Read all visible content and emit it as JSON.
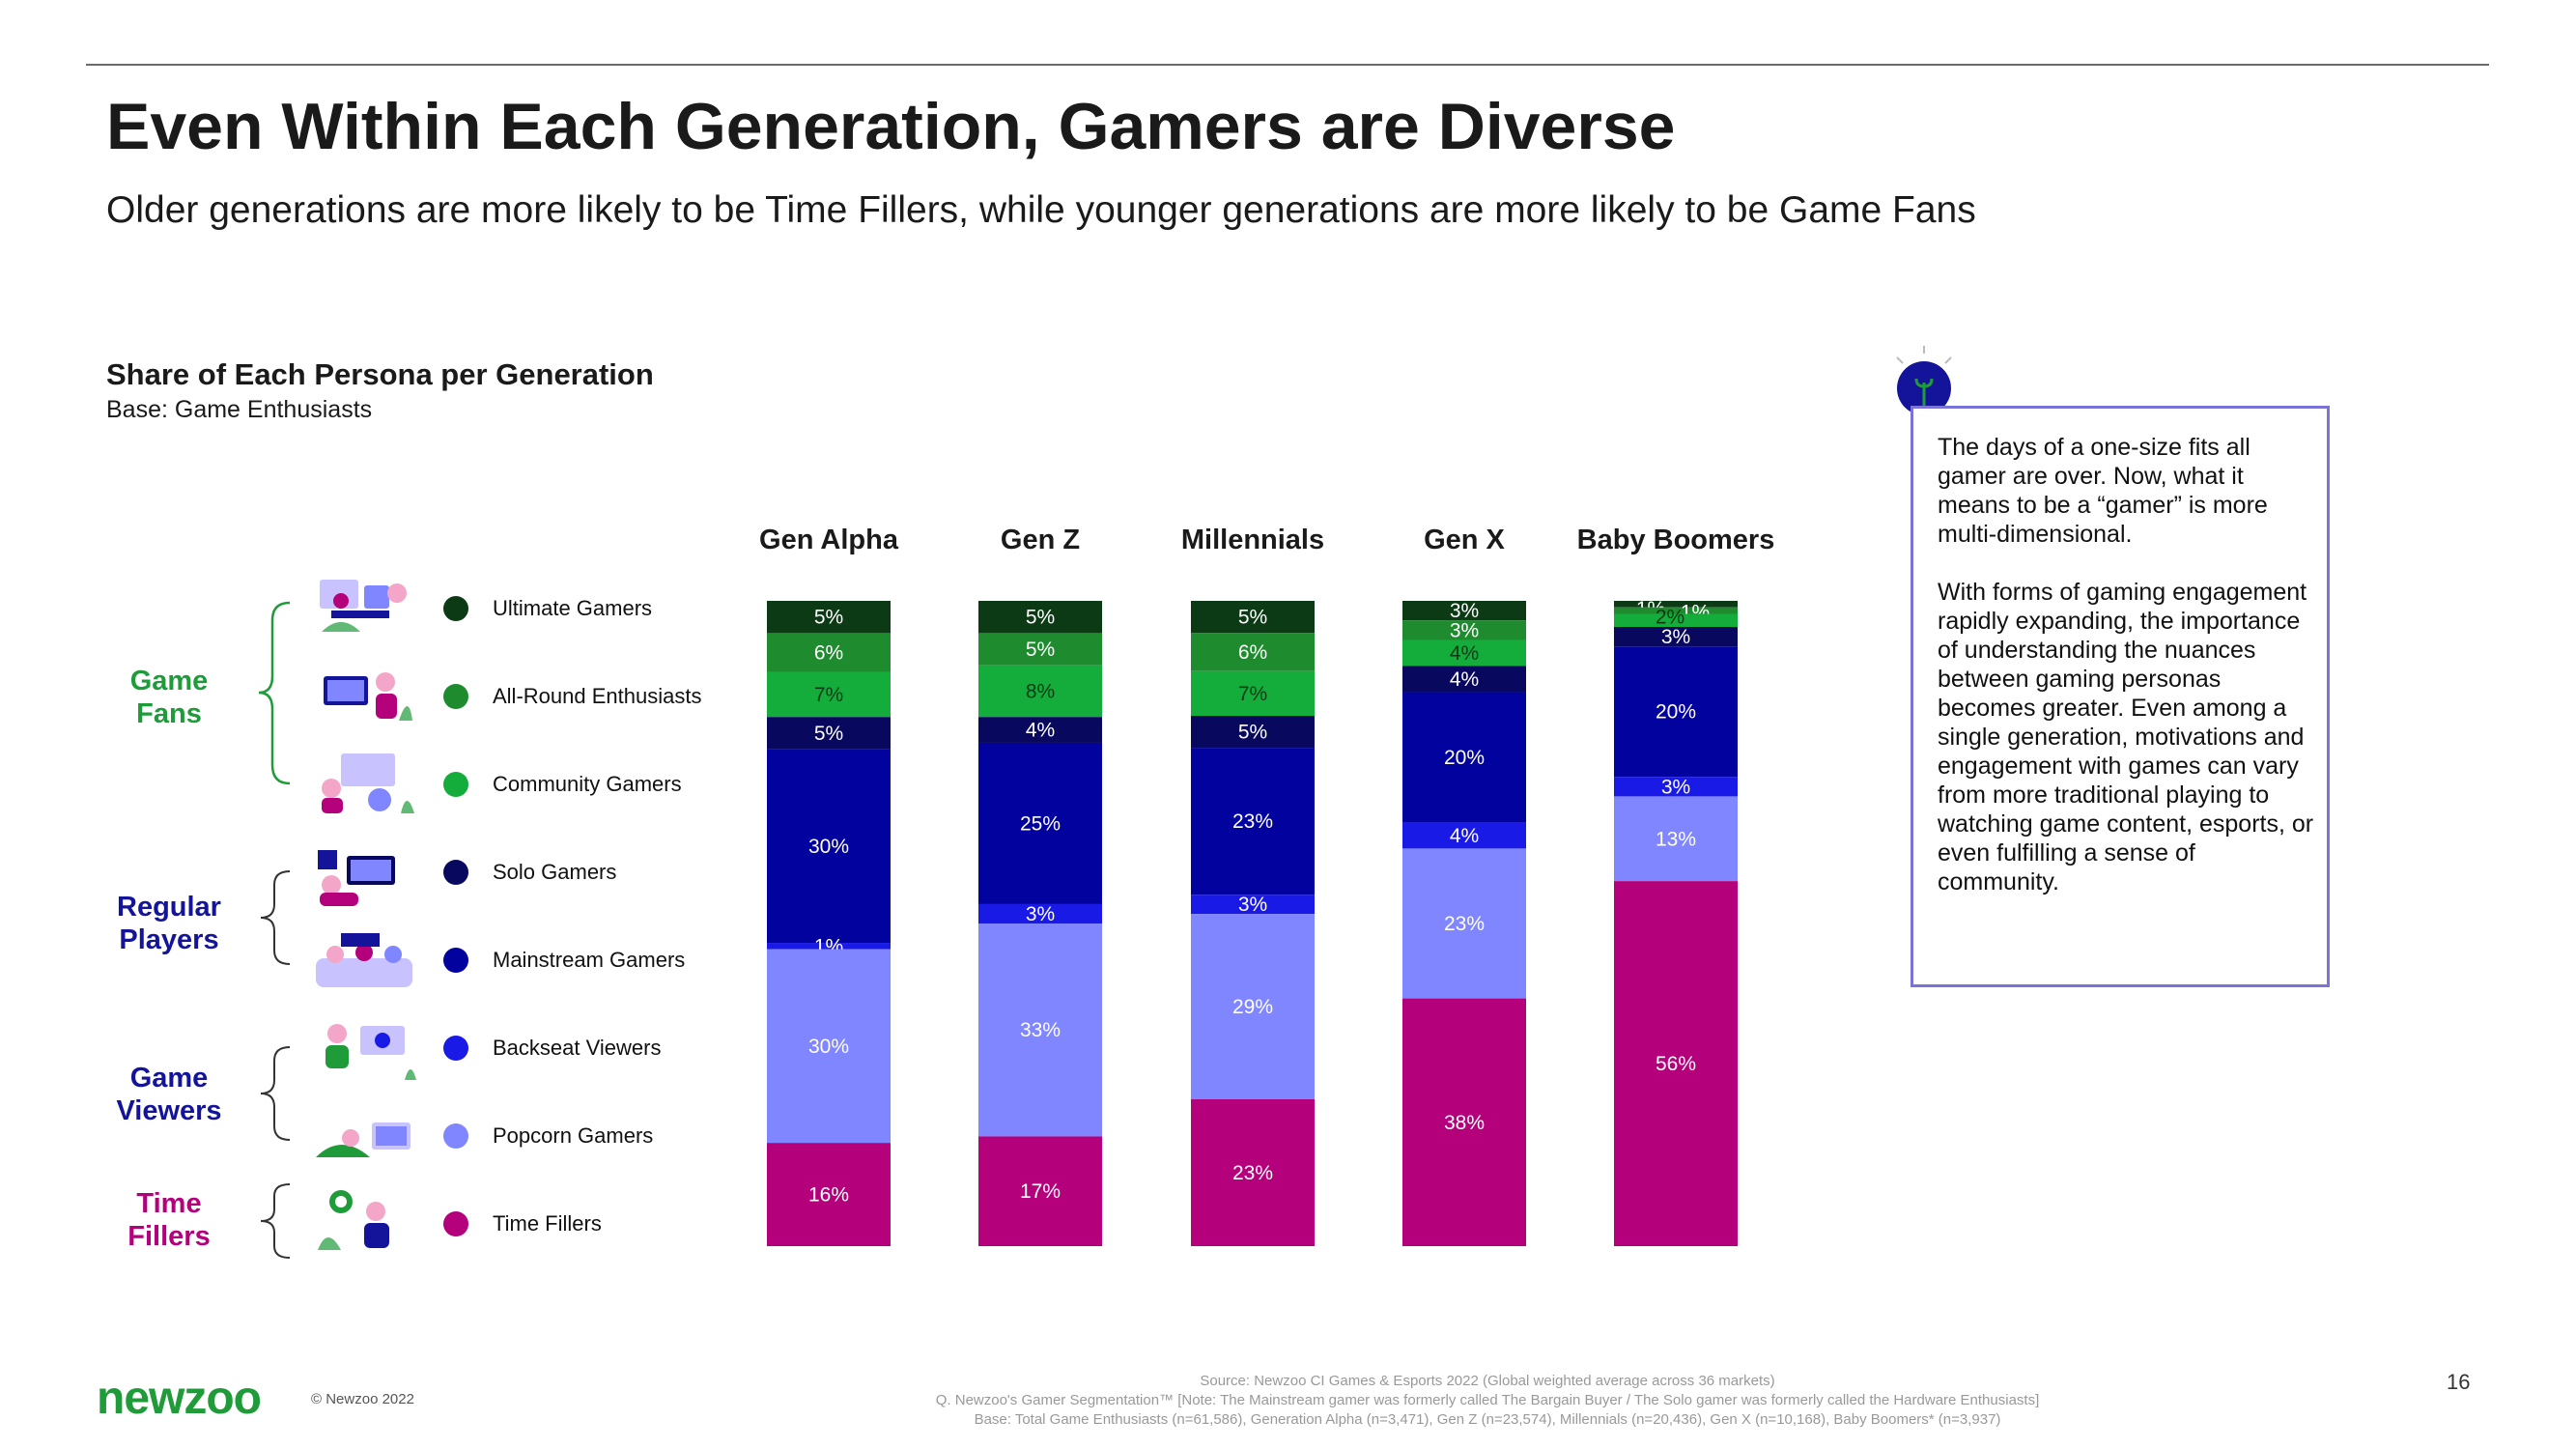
{
  "header": {
    "title": "Even Within Each Generation, Gamers are Diverse",
    "subtitle": "Older generations are more likely to be Time Fillers, while younger generations are more likely to be Game Fans"
  },
  "chart_heading": {
    "title": "Share of Each Persona per Generation",
    "base": "Base: Game Enthusiasts"
  },
  "groups": [
    {
      "line1": "Game",
      "line2": "Fans",
      "color": "#1f9b3a"
    },
    {
      "line1": "Regular",
      "line2": "Players",
      "color": "#14149b"
    },
    {
      "line1": "Game",
      "line2": "Viewers",
      "color": "#14149b"
    },
    {
      "line1": "Time",
      "line2": "Fillers",
      "color": "#b5007c"
    }
  ],
  "colors": {
    "Ultimate Gamers": "#0b3a14",
    "All-Round Enthusiasts": "#1e8c2e",
    "Community Gamers": "#14ad3c",
    "Solo Gamers": "#07085e",
    "Mainstream Gamers": "#02029e",
    "Backseat Viewers": "#1a1ae6",
    "Popcorn Gamers": "#7f86ff",
    "Time Fillers": "#b5007c"
  },
  "chart_data": {
    "type": "bar",
    "stacked": true,
    "normalized": true,
    "categories": [
      "Gen Alpha",
      "Gen Z",
      "Millennials",
      "Gen X",
      "Baby Boomers"
    ],
    "series": [
      {
        "name": "Ultimate Gamers",
        "values": [
          5,
          5,
          5,
          3,
          1
        ]
      },
      {
        "name": "All-Round Enthusiasts",
        "values": [
          6,
          5,
          6,
          3,
          1
        ]
      },
      {
        "name": "Community Gamers",
        "values": [
          7,
          8,
          7,
          4,
          2
        ]
      },
      {
        "name": "Solo Gamers",
        "values": [
          5,
          4,
          5,
          4,
          3
        ]
      },
      {
        "name": "Mainstream Gamers",
        "values": [
          30,
          25,
          23,
          20,
          20
        ]
      },
      {
        "name": "Backseat Viewers",
        "values": [
          1,
          3,
          3,
          4,
          3
        ]
      },
      {
        "name": "Popcorn Gamers",
        "values": [
          30,
          33,
          29,
          23,
          13
        ]
      },
      {
        "name": "Time Fillers",
        "values": [
          16,
          17,
          23,
          38,
          56
        ]
      }
    ],
    "value_suffix": "%",
    "legend_position": "left",
    "grid": false
  },
  "callout": {
    "paragraph1": "The days of a one-size fits all gamer are over. Now, what it means to be a “gamer” is more multi-dimensional.",
    "paragraph2": "With forms of gaming engagement rapidly expanding, the importance of understanding the nuances between gaming personas becomes greater. Even among a single generation, motivations and engagement with games can vary from more traditional playing to watching game content, esports, or even fulfilling a sense of community."
  },
  "footer": {
    "logo": "newzoo",
    "copyright": "© Newzoo 2022",
    "source": "Source: Newzoo CI Games & Esports 2022 (Global weighted average across 36 markets)",
    "question": "Q. Newzoo's Gamer Segmentation™ [Note: The Mainstream gamer was formerly called The Bargain Buyer / The Solo gamer was formerly called the Hardware Enthusiasts]",
    "base": "Base: Total Game Enthusiasts (n=61,586), Generation Alpha (n=3,471), Gen Z (n=23,574), Millennials (n=20,436), Gen X (n=10,168), Baby Boomers* (n=3,937)",
    "page_number": "16"
  }
}
